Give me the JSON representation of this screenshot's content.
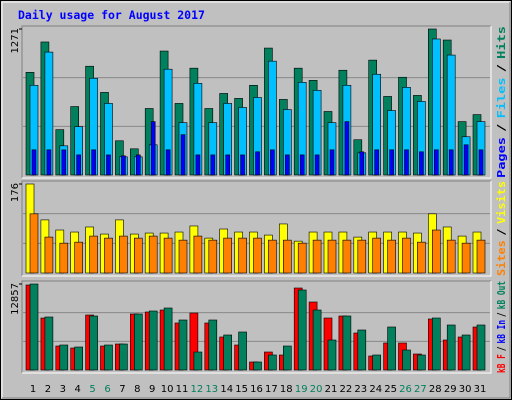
{
  "chart_data": [
    {
      "type": "bar",
      "title": "Daily usage for August 2017",
      "ylim": [
        0,
        1271
      ],
      "yticks": [
        1271
      ],
      "legend_separator": "/",
      "series": [
        {
          "name": "Pages",
          "color": "#0000ff",
          "values": [
            219,
            219,
            219,
            175,
            219,
            175,
            167,
            175,
            465,
            219,
            351,
            175,
            175,
            175,
            175,
            202,
            219,
            175,
            175,
            175,
            219,
            465,
            202,
            219,
            219,
            219,
            202,
            219,
            219,
            263,
            219
          ]
        },
        {
          "name": "Files",
          "color": "#00c0ff",
          "values": [
            781,
            1070,
            254,
            421,
            842,
            623,
            158,
            158,
            263,
            921,
            456,
            798,
            456,
            623,
            588,
            675,
            991,
            570,
            807,
            737,
            456,
            781,
            193,
            877,
            561,
            763,
            640,
            1184,
            1044,
            333,
            465
          ]
        },
        {
          "name": "Hits",
          "color": "#00805c",
          "values": [
            894,
            1158,
            395,
            596,
            947,
            719,
            298,
            228,
            579,
            1079,
            623,
            930,
            579,
            710,
            667,
            781,
            1105,
            658,
            930,
            824,
            553,
            912,
            307,
            1000,
            684,
            851,
            693,
            1271,
            1175,
            465,
            526
          ]
        }
      ]
    },
    {
      "type": "bar",
      "ylim": [
        0,
        176
      ],
      "yticks": [
        176
      ],
      "legend_separator": "/",
      "series": [
        {
          "name": "Sites",
          "color": "#ff8000",
          "values": [
            117,
            71,
            59,
            61,
            73,
            69,
            73,
            69,
            73,
            69,
            65,
            73,
            65,
            69,
            69,
            69,
            65,
            65,
            59,
            65,
            65,
            65,
            65,
            69,
            65,
            69,
            61,
            85,
            65,
            59,
            65
          ]
        },
        {
          "name": "Visits",
          "color": "#ffff00",
          "values": [
            176,
            105,
            85,
            81,
            91,
            77,
            105,
            77,
            79,
            79,
            81,
            93,
            69,
            87,
            81,
            81,
            75,
            97,
            63,
            81,
            81,
            81,
            71,
            81,
            81,
            81,
            79,
            117,
            91,
            73,
            81
          ]
        }
      ]
    },
    {
      "type": "bar",
      "ylim": [
        0,
        12857
      ],
      "yticks": [
        12857
      ],
      "legend_separator": "/",
      "categories": [
        "1",
        "2",
        "3",
        "4",
        "5",
        "6",
        "7",
        "8",
        "9",
        "10",
        "11",
        "12",
        "13",
        "14",
        "15",
        "16",
        "17",
        "18",
        "19",
        "20",
        "21",
        "22",
        "23",
        "24",
        "25",
        "26",
        "27",
        "28",
        "29",
        "30",
        "31"
      ],
      "category_colors": [
        "#000000",
        "#000000",
        "#000000",
        "#000000",
        "#00805c",
        "#00805c",
        "#000000",
        "#000000",
        "#000000",
        "#000000",
        "#000000",
        "#00805c",
        "#00805c",
        "#000000",
        "#000000",
        "#000000",
        "#000000",
        "#000000",
        "#00805c",
        "#00805c",
        "#000000",
        "#000000",
        "#000000",
        "#000000",
        "#000000",
        "#00805c",
        "#00805c",
        "#000000",
        "#000000",
        "#000000",
        "#000000"
      ],
      "series": [
        {
          "name": "kB F",
          "color": "#ff0000",
          "values": [
            12708,
            7774,
            3588,
            3289,
            8223,
            3588,
            3887,
            8372,
            8671,
            8970,
            7027,
            8522,
            7027,
            4934,
            3738,
            1196,
            2691,
            2243,
            12259,
            10166,
            7774,
            8073,
            5532,
            2093,
            4037,
            4037,
            2392,
            7625,
            4485,
            4934,
            6429
          ]
        },
        {
          "name": "kB In",
          "color": "#0000ff",
          "values": [
            0,
            0,
            0,
            0,
            0,
            0,
            0,
            0,
            0,
            0,
            0,
            0,
            0,
            0,
            0,
            0,
            0,
            0,
            0,
            0,
            0,
            0,
            0,
            0,
            0,
            0,
            0,
            0,
            0,
            0,
            0
          ]
        },
        {
          "name": "kB Out",
          "color": "#00805c",
          "values": [
            12857,
            7924,
            3738,
            3439,
            8073,
            3738,
            3887,
            8372,
            8821,
            9269,
            7475,
            2691,
            7475,
            5233,
            5681,
            1196,
            2243,
            3588,
            11960,
            8970,
            4485,
            8073,
            5980,
            2243,
            6429,
            2990,
            2243,
            7774,
            6728,
            5233,
            6728
          ]
        }
      ]
    }
  ]
}
